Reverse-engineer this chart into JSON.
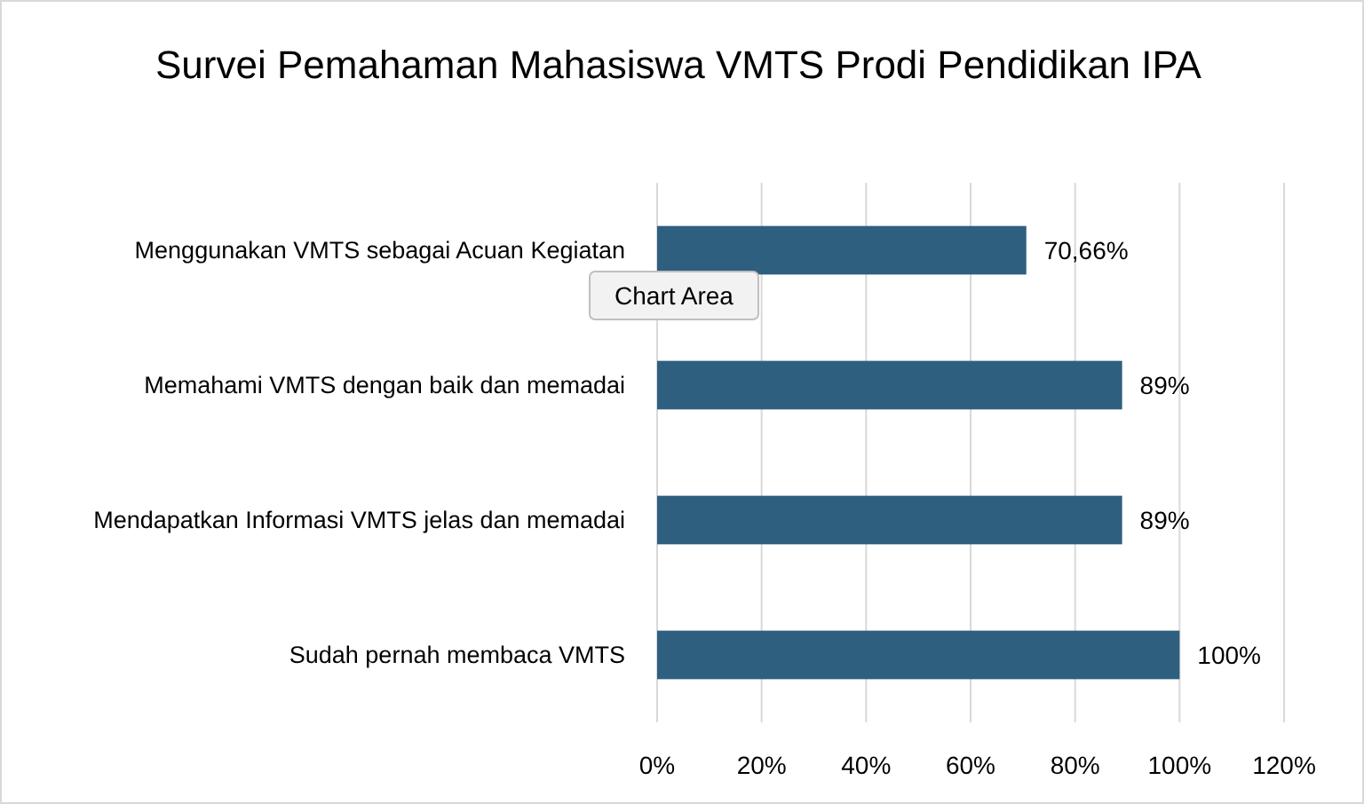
{
  "chart_data": {
    "type": "bar",
    "orientation": "horizontal",
    "title": "Survei Pemahaman Mahasiswa VMTS Prodi Pendidikan IPA",
    "categories": [
      "Menggunakan VMTS sebagai Acuan Kegiatan",
      "Memahami VMTS dengan baik dan memadai",
      "Mendapatkan Informasi VMTS jelas dan memadai",
      "Sudah pernah membaca VMTS"
    ],
    "values": [
      70.66,
      89,
      89,
      100
    ],
    "value_labels": [
      "70,66%",
      "89%",
      "89%",
      "100%"
    ],
    "color": "#2e5f7f",
    "xlim": [
      0,
      120
    ],
    "xticks": [
      {
        "value": 0,
        "label": "0%"
      },
      {
        "value": 20,
        "label": "20%"
      },
      {
        "value": 40,
        "label": "40%"
      },
      {
        "value": 60,
        "label": "60%"
      },
      {
        "value": 80,
        "label": "80%"
      },
      {
        "value": 100,
        "label": "100%"
      },
      {
        "value": 120,
        "label": "120%"
      }
    ],
    "grid": "x",
    "annotations": [
      "Chart Area"
    ]
  }
}
